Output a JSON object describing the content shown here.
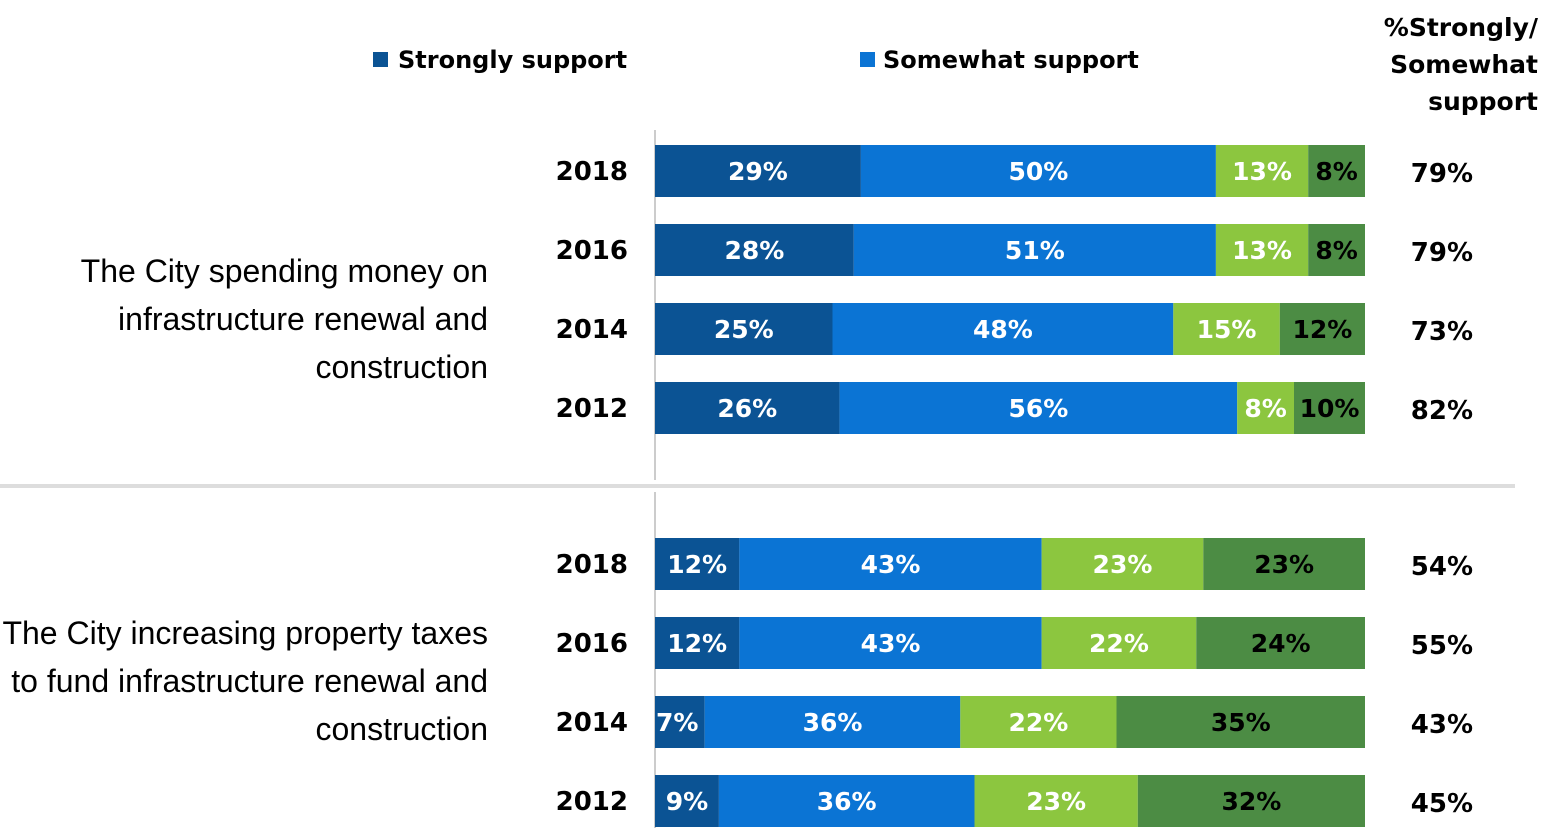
{
  "colors": {
    "strongly_support": "#0B5394",
    "somewhat_support": "#0B74D4",
    "somewhat_oppose": "#8CC63F",
    "strongly_oppose": "#4C8C44",
    "divider": "#dddddd",
    "axis": "#cccccc",
    "text_dark": "#000000",
    "text_light": "#ffffff"
  },
  "chart_data": {
    "type": "bar",
    "orientation": "horizontal",
    "stacked": true,
    "xlim": [
      0,
      100
    ],
    "legend": {
      "position": "top",
      "entries": [
        "Strongly support",
        "Somewhat support"
      ]
    },
    "total_header_lines": [
      "%Strongly/",
      "Somewhat",
      "support"
    ],
    "series_keys": [
      "strongly_support",
      "somewhat_support",
      "somewhat_oppose",
      "strongly_oppose"
    ],
    "groups": [
      {
        "question_lines": [
          "The City spending money on",
          "infrastructure renewal and",
          "construction"
        ],
        "rows": [
          {
            "year": "2018",
            "values": [
              29,
              50,
              13,
              8
            ],
            "total": "79%"
          },
          {
            "year": "2016",
            "values": [
              28,
              51,
              13,
              8
            ],
            "total": "79%"
          },
          {
            "year": "2014",
            "values": [
              25,
              48,
              15,
              12
            ],
            "total": "73%"
          },
          {
            "year": "2012",
            "values": [
              26,
              56,
              8,
              10
            ],
            "total": "82%"
          }
        ]
      },
      {
        "question_lines": [
          "The City increasing property taxes",
          "to fund infrastructure renewal and",
          "construction"
        ],
        "rows": [
          {
            "year": "2018",
            "values": [
              12,
              43,
              23,
              23
            ],
            "total": "54%"
          },
          {
            "year": "2016",
            "values": [
              12,
              43,
              22,
              24
            ],
            "total": "55%"
          },
          {
            "year": "2014",
            "values": [
              7,
              36,
              22,
              35
            ],
            "total": "43%"
          },
          {
            "year": "2012",
            "values": [
              9,
              36,
              23,
              32
            ],
            "total": "45%"
          }
        ]
      }
    ]
  }
}
